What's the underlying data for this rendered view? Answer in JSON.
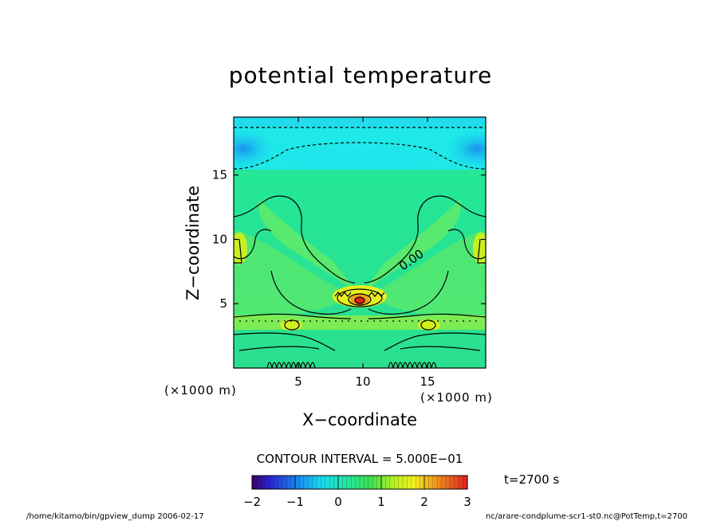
{
  "chart_data": {
    "type": "heatmap",
    "title": "potential temperature",
    "xlabel": "X−coordinate",
    "ylabel": "Z−coordinate",
    "x_unit_left": "(×1000 m)",
    "x_unit_right": "(×1000 m)",
    "xlim": [
      0,
      19.5
    ],
    "ylim": [
      0,
      19.5
    ],
    "x_ticks": [
      5,
      10,
      15
    ],
    "y_ticks": [
      5,
      10,
      15
    ],
    "x_tick_labels": [
      "5",
      "10",
      "15"
    ],
    "y_tick_labels": [
      "5",
      "10",
      "15"
    ],
    "contour_interval_text": "CONTOUR INTERVAL = 5.000E−01",
    "contour_label": "0.00",
    "colorbar": {
      "range": [
        -2,
        3
      ],
      "ticks": [
        -2,
        -1,
        0,
        1,
        2,
        3
      ],
      "tick_labels": [
        "−2",
        "−1",
        "0",
        "1",
        "2",
        "3"
      ]
    },
    "time_text": "t=2700 s",
    "footer_left": "/home/kitamo/bin/gpview_dump  2006-02-17",
    "footer_right": "nc/arare-condplume-scr1-st0.nc@PotTemp,t=2700",
    "regions": [
      {
        "name": "background",
        "value": 0.3
      },
      {
        "name": "upper-layer",
        "value": -0.7,
        "z_bottom": 15.8
      },
      {
        "name": "top-cold-left",
        "value": -1.2
      },
      {
        "name": "top-cold-right",
        "value": -1.2
      },
      {
        "name": "plume-core",
        "value": 1.6
      },
      {
        "name": "warm-band",
        "value": 1.0,
        "z": 3.8
      }
    ]
  }
}
